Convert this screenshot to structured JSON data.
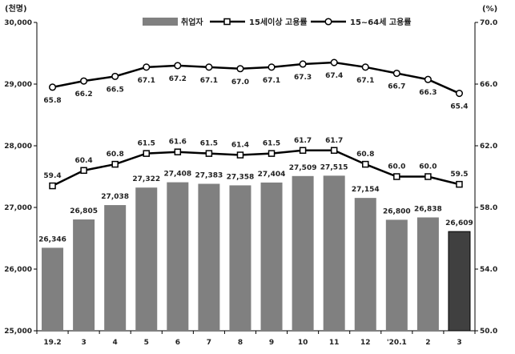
{
  "chart_data": {
    "type": "bar",
    "categories": [
      "19.2",
      "3",
      "4",
      "5",
      "6",
      "7",
      "8",
      "9",
      "10",
      "11",
      "12",
      "'20.1",
      "2",
      "3"
    ],
    "left_unit": "(천명)",
    "right_unit": "(%)",
    "y_left_lim": [
      25000,
      30000
    ],
    "y_left_ticks": [
      "25,000",
      "26,000",
      "27,000",
      "28,000",
      "29,000",
      "30,000"
    ],
    "y_right_lim": [
      50.0,
      70.0
    ],
    "y_right_ticks": [
      "50.0",
      "54.0",
      "58.0",
      "62.0",
      "66.0",
      "70.0"
    ],
    "series": [
      {
        "name": "취업자",
        "kind": "bar",
        "axis": "left",
        "color": "#808080",
        "highlight_last_color": "#404040",
        "values": [
          26346,
          26805,
          27038,
          27322,
          27408,
          27383,
          27358,
          27404,
          27509,
          27515,
          27154,
          26800,
          26838,
          26609
        ],
        "labels": [
          "26,346",
          "26,805",
          "27,038",
          "27,322",
          "27,408",
          "27,383",
          "27,358",
          "27,404",
          "27,509",
          "27,515",
          "27,154",
          "26,800",
          "26,838",
          "26,609"
        ]
      },
      {
        "name": "15세이상 고용률",
        "kind": "line",
        "axis": "right",
        "marker": "square",
        "values": [
          59.4,
          60.4,
          60.8,
          61.5,
          61.6,
          61.5,
          61.4,
          61.5,
          61.7,
          61.7,
          60.8,
          60.0,
          60.0,
          59.5
        ],
        "labels": [
          "59.4",
          "60.4",
          "60.8",
          "61.5",
          "61.6",
          "61.5",
          "61.4",
          "61.5",
          "61.7",
          "61.7",
          "60.8",
          "60.0",
          "60.0",
          "59.5"
        ]
      },
      {
        "name": "15~64세 고용률",
        "kind": "line",
        "axis": "right",
        "marker": "circle",
        "values": [
          65.8,
          66.2,
          66.5,
          67.1,
          67.2,
          67.1,
          67.0,
          67.1,
          67.3,
          67.4,
          67.1,
          66.7,
          66.3,
          65.4
        ],
        "labels": [
          "65.8",
          "66.2",
          "66.5",
          "67.1",
          "67.2",
          "67.1",
          "67.0",
          "67.1",
          "67.3",
          "67.4",
          "67.1",
          "66.7",
          "66.3",
          "65.4"
        ]
      }
    ],
    "legend_position": "top-center",
    "grid": false
  }
}
